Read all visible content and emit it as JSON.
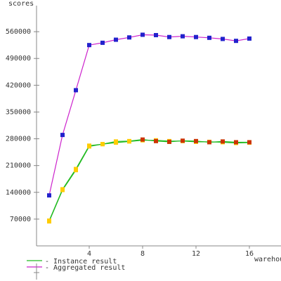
{
  "chart_data": {
    "type": "line",
    "ylabel": "scores",
    "xlabel": "warehouses",
    "x_ticks": [
      4,
      8,
      12,
      16
    ],
    "y_ticks": [
      70000,
      140000,
      210000,
      280000,
      350000,
      420000,
      490000,
      560000
    ],
    "xlim": [
      0,
      18
    ],
    "ylim": [
      0,
      630000
    ],
    "grid": false,
    "legend_position": "bottom-left",
    "legend": [
      {
        "label": "- Instance result",
        "color": "#22bb22"
      },
      {
        "label": "- Aggregated result",
        "color": "#cc22cc"
      }
    ],
    "series": [
      {
        "name": "Aggregated result",
        "line_color": "#cc22cc",
        "marker_colors": [
          "#2222cc"
        ],
        "x": [
          1,
          2,
          3,
          4,
          5,
          6,
          7,
          8,
          9,
          10,
          11,
          12,
          13,
          14,
          15,
          16
        ],
        "y": [
          132000,
          290000,
          407000,
          525000,
          531000,
          539000,
          545000,
          552000,
          551000,
          546000,
          548000,
          546000,
          544000,
          541000,
          536000,
          542000
        ]
      },
      {
        "name": "Instance result",
        "line_color": "#22bb22",
        "marker_colors": [
          "#ffcc00",
          "#cc3300"
        ],
        "x": [
          1,
          2,
          3,
          4,
          5,
          6,
          7,
          8,
          9,
          10,
          11,
          12,
          13,
          14,
          15,
          16
        ],
        "y": [
          66000,
          148000,
          201000,
          262000,
          266000,
          270000,
          273000,
          276000,
          276000,
          274000,
          274000,
          272000,
          272000,
          271000,
          269000,
          270000
        ]
      },
      {
        "name": "Instance result",
        "line_color": "#22bb22",
        "marker_colors": [
          "#ffcc00",
          "#cc3300"
        ],
        "x": [
          1,
          2,
          3,
          4,
          5,
          6,
          7,
          8,
          9,
          10,
          11,
          12,
          13,
          14,
          15,
          16
        ],
        "y": [
          64000,
          146000,
          198000,
          260000,
          266000,
          273000,
          274000,
          278000,
          274000,
          272000,
          275000,
          274000,
          271000,
          273000,
          271000,
          271000
        ]
      }
    ]
  }
}
